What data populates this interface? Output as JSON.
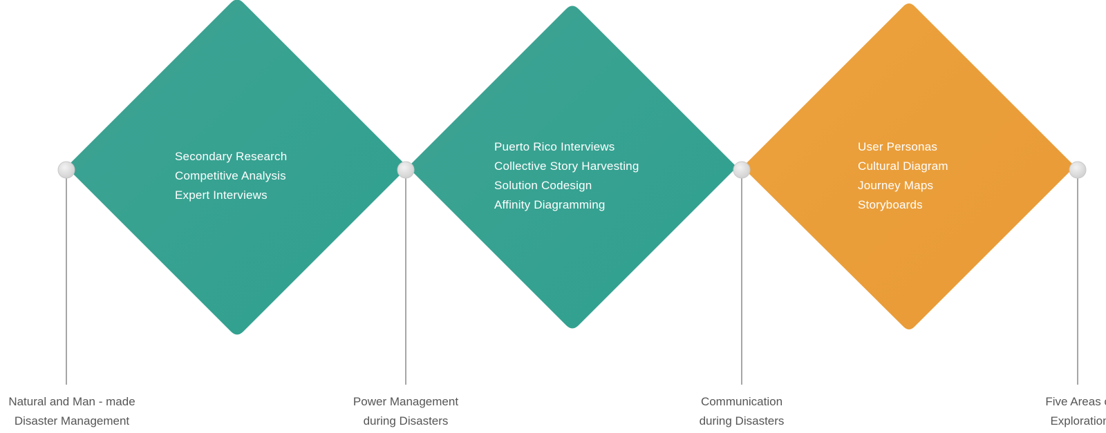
{
  "colors": {
    "teal_light": "#3fa392",
    "teal_dark": "#2fa090",
    "orange_light": "#eca23e",
    "orange_dark": "#e89a36",
    "connector_line": "#a6a6a6",
    "node_fill": "#dedede",
    "caption_text": "#555555",
    "diamond_text": "#ffffff"
  },
  "diamonds": [
    {
      "color": "teal",
      "items": [
        "Secondary Research",
        "Competitive Analysis",
        "Expert Interviews"
      ]
    },
    {
      "color": "teal",
      "items": [
        "Puerto Rico Interviews",
        "Collective Story Harvesting",
        "Solution Codesign",
        "Affinity Diagramming"
      ]
    },
    {
      "color": "orange",
      "items": [
        "User Personas",
        "Cultural Diagram",
        "Journey Maps",
        "Storyboards"
      ]
    }
  ],
  "milestones": [
    {
      "icon": "node-circle-icon",
      "lines": [
        "Natural and Man - made",
        "Disaster Management"
      ]
    },
    {
      "icon": "node-circle-icon",
      "lines": [
        "Power Management",
        "during Disasters"
      ]
    },
    {
      "icon": "node-circle-icon",
      "lines": [
        "Communication",
        "during Disasters"
      ]
    },
    {
      "icon": "node-circle-icon",
      "lines": [
        "Five Areas of",
        "Exploration"
      ]
    }
  ]
}
